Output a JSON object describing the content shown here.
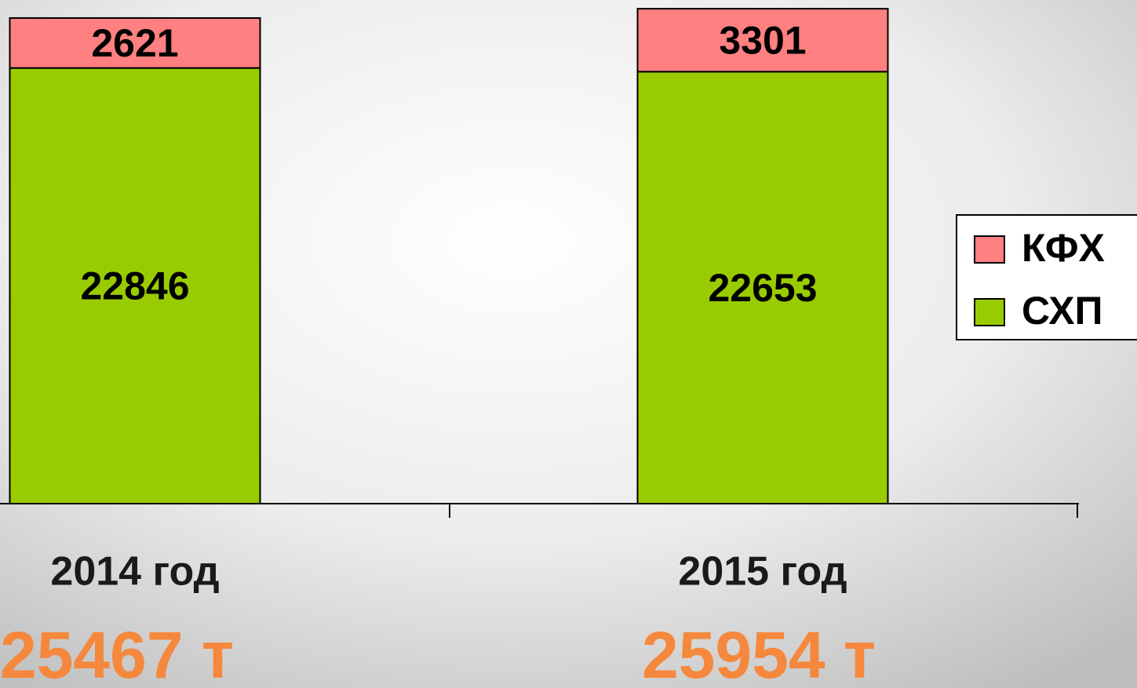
{
  "chart_data": {
    "type": "stacked_bar",
    "categories": [
      "2014 год",
      "2015 год"
    ],
    "series": [
      {
        "name": "СХП",
        "color": "#99cc00",
        "values": [
          22846,
          22653
        ]
      },
      {
        "name": "КФХ",
        "color": "#ff8080",
        "values": [
          2621,
          3301
        ]
      }
    ],
    "annotations": [
      "25467 т",
      "25954 т"
    ],
    "ylim": [
      0,
      26000
    ],
    "legend": "right"
  }
}
